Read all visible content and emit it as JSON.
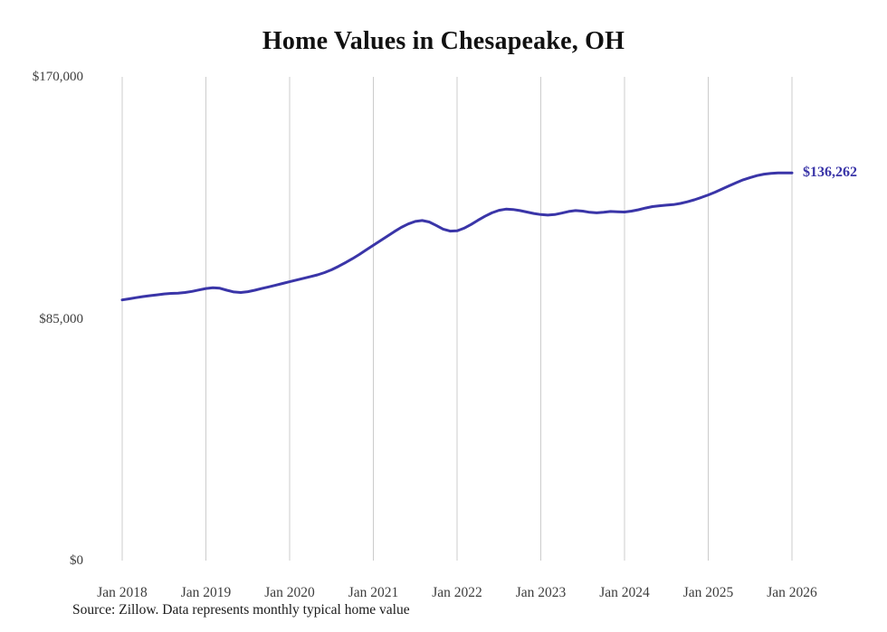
{
  "title": "Home Values in Chesapeake, OH",
  "source_note": "Source: Zillow. Data represents monthly typical home value",
  "end_label": "$136,262",
  "colors": {
    "line": "#3a35a8",
    "grid": "#cccccc",
    "axis_text": "#3d3d3d",
    "title_text": "#111111"
  },
  "chart_data": {
    "type": "line",
    "title": "Home Values in Chesapeake, OH",
    "series_name": "Monthly typical home value",
    "x_unit": "month",
    "x_start": "Jan 2018",
    "x_end": "Jan 2026",
    "x_tick_labels": [
      "Jan 2018",
      "Jan 2019",
      "Jan 2020",
      "Jan 2021",
      "Jan 2022",
      "Jan 2023",
      "Jan 2024",
      "Jan 2025",
      "Jan 2026"
    ],
    "y_tick_labels": [
      "$170,000",
      "$85,000",
      "$0"
    ],
    "y_ticks": [
      170000,
      85000,
      0
    ],
    "ylim": [
      0,
      170000
    ],
    "grid": "vertical-only",
    "legend": "none",
    "final_value": 136262,
    "values": [
      91600,
      92000,
      92400,
      92800,
      93100,
      93400,
      93700,
      93900,
      94000,
      94200,
      94600,
      95100,
      95600,
      95900,
      95700,
      95000,
      94400,
      94200,
      94500,
      95000,
      95600,
      96200,
      96800,
      97400,
      98000,
      98600,
      99200,
      99800,
      100400,
      101200,
      102200,
      103400,
      104700,
      106100,
      107600,
      109200,
      110800,
      112400,
      114000,
      115600,
      117100,
      118300,
      119200,
      119500,
      119000,
      117800,
      116500,
      115800,
      115900,
      116800,
      118100,
      119600,
      121000,
      122200,
      123100,
      123500,
      123400,
      123000,
      122500,
      122000,
      121600,
      121400,
      121600,
      122100,
      122700,
      123000,
      122800,
      122400,
      122200,
      122400,
      122700,
      122600,
      122500,
      122800,
      123300,
      123900,
      124400,
      124700,
      124900,
      125100,
      125500,
      126100,
      126800,
      127600,
      128500,
      129500,
      130600,
      131700,
      132800,
      133800,
      134600,
      135300,
      135800,
      136100,
      136250,
      136260,
      136262
    ]
  }
}
